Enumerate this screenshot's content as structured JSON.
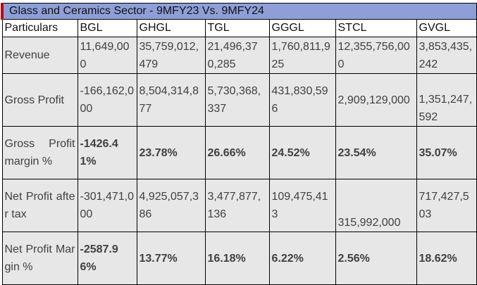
{
  "title": "Glass and Ceramics Sector - 9MFY23 Vs. 9MFY24",
  "columns": [
    "Particulars",
    "BGL",
    "GHGL",
    "TGL",
    "GGGL",
    "STCL",
    "GVGL"
  ],
  "rows": [
    {
      "label": "Revenue",
      "values": [
        "11,649,000",
        "35,759,012,479",
        "21,496,370,285",
        "1,760,811,925",
        "12,355,756,000",
        "3,853,435,242"
      ]
    },
    {
      "label": "Gross Profit",
      "values": [
        "-166,162,000",
        "8,504,314,877",
        "5,730,368,337",
        "431,830,596",
        "2,909,129,000",
        "1,351,247,592"
      ]
    },
    {
      "label": "Gross Profit margin %",
      "values": [
        "-1426.41%",
        "23.78%",
        "26.66%",
        "24.52%",
        "23.54%",
        "35.07%"
      ]
    },
    {
      "label": "Net Profit after tax",
      "values": [
        "-301,471,000",
        "4,925,057,386",
        "3,477,877,136",
        "109,475,413",
        "315,992,000",
        "717,427,503"
      ]
    },
    {
      "label": "Net Profit Margin %",
      "values": [
        "-2587.96%",
        "13.77%",
        "16.18%",
        "6.22%",
        "2.56%",
        "18.62%"
      ]
    }
  ]
}
